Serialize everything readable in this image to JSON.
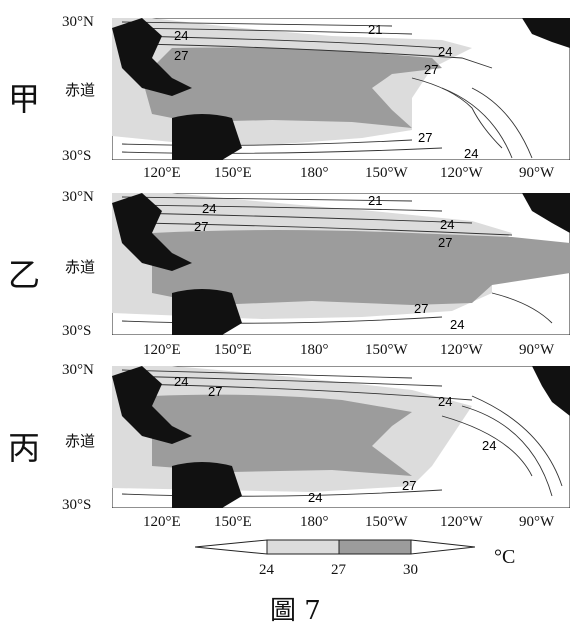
{
  "panels": [
    {
      "label": "甲",
      "lat_top": "30°N",
      "lat_mid": "赤道",
      "lat_bot": "30°S",
      "isotherms": [
        "24",
        "27",
        "21",
        "24",
        "27",
        "27",
        "24"
      ]
    },
    {
      "label": "乙",
      "lat_top": "30°N",
      "lat_mid": "赤道",
      "lat_bot": "30°S",
      "isotherms": [
        "24",
        "27",
        "21",
        "24",
        "27",
        "27",
        "24"
      ]
    },
    {
      "label": "丙",
      "lat_top": "30°N",
      "lat_mid": "赤道",
      "lat_bot": "30°S",
      "isotherms": [
        "24",
        "27",
        "24",
        "24",
        "27",
        "24"
      ]
    }
  ],
  "longitudes": [
    "120°E",
    "150°E",
    "180°",
    "150°W",
    "120°W",
    "90°W"
  ],
  "legend": {
    "values": [
      "24",
      "27",
      "30"
    ],
    "unit": "°C"
  },
  "caption": "圖 7",
  "colors": {
    "land": "#111111",
    "warm": "#9c9c9c",
    "mid": "#dcdcdc",
    "cool": "#ffffff"
  }
}
